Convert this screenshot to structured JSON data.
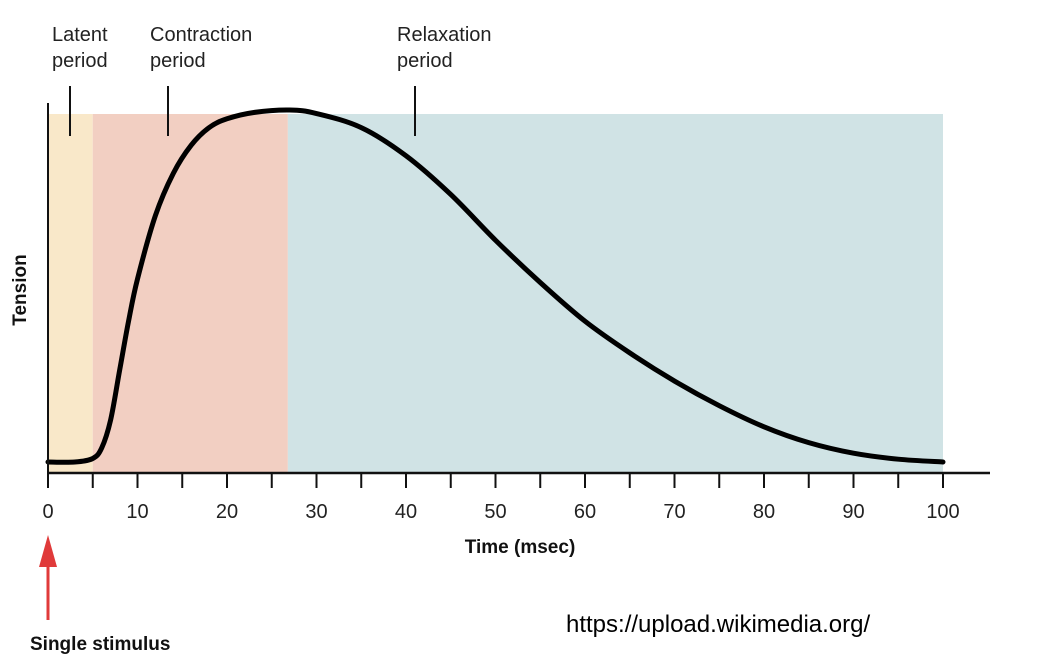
{
  "chart_data": {
    "type": "line",
    "title": "",
    "xlabel": "Time (msec)",
    "ylabel": "Tension",
    "xlim": [
      0,
      100
    ],
    "ylim": [
      0,
      1
    ],
    "x_ticks": [
      0,
      10,
      20,
      30,
      40,
      50,
      60,
      70,
      80,
      90,
      100
    ],
    "minor_tick_step": 5,
    "grid": false,
    "series": [
      {
        "x": [
          0,
          3,
          5,
          6,
          7,
          8,
          9,
          10,
          12,
          14,
          16,
          18,
          20,
          23,
          27,
          30,
          35,
          40,
          45,
          50,
          55,
          60,
          65,
          70,
          75,
          80,
          85,
          90,
          95,
          100
        ],
        "y": [
          0,
          0,
          0.01,
          0.04,
          0.12,
          0.26,
          0.4,
          0.52,
          0.7,
          0.82,
          0.9,
          0.95,
          0.975,
          0.993,
          1.0,
          0.99,
          0.95,
          0.87,
          0.76,
          0.63,
          0.51,
          0.4,
          0.31,
          0.23,
          0.16,
          0.1,
          0.055,
          0.025,
          0.008,
          0.0
        ],
        "color": "#000000"
      }
    ],
    "regions": [
      {
        "name": "Latent period",
        "label_lines": [
          "Latent",
          "period"
        ],
        "from": 0,
        "to": 5,
        "color": "#f9e8c9"
      },
      {
        "name": "Contraction period",
        "label_lines": [
          "Contraction",
          "period"
        ],
        "from": 5,
        "to": 26.8,
        "color": "#f2cfc2"
      },
      {
        "name": "Relaxation period",
        "label_lines": [
          "Relaxation",
          "period"
        ],
        "from": 26.8,
        "to": 100,
        "color": "#d0e3e5"
      }
    ],
    "annotations": [
      {
        "text": "Single stimulus",
        "x": 0,
        "arrow_color": "#e03a3a"
      }
    ]
  },
  "watermark": "https://upload.wikimedia.org/"
}
